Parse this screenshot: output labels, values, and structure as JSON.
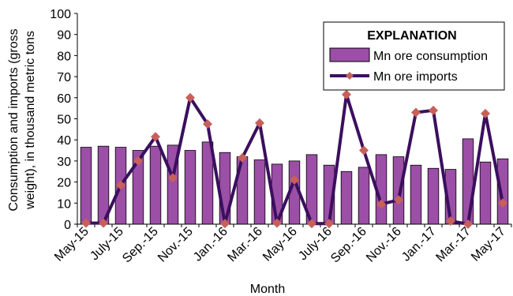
{
  "chart_data": {
    "type": "bar",
    "title": "",
    "xlabel": "Month",
    "ylabel_lines": [
      "Consumption and imports (gross",
      "weight), in thousand metric tons"
    ],
    "ylim": [
      0,
      100
    ],
    "yticks": [
      0,
      10,
      20,
      30,
      40,
      50,
      60,
      70,
      80,
      90,
      100
    ],
    "grid": false,
    "categories": [
      "May-15",
      "Jun-15",
      "July-15",
      "Aug-15",
      "Sep.-15",
      "Oct.-15",
      "Nov.-15",
      "Dec.-15",
      "Jan.-16",
      "Feb.-16",
      "Mar.-16",
      "Apr.-16",
      "May-16",
      "Jun-16",
      "July-16",
      "Aug-16",
      "Sep.-16",
      "Oct.-16",
      "Nov.-16",
      "Dec.-16",
      "Jan.-17",
      "Feb.-17",
      "Mar.-17",
      "Apr.-17",
      "May-17"
    ],
    "shown_tick_labels": [
      "May-15",
      "July-15",
      "Sep.-15",
      "Nov.-15",
      "Jan.-16",
      "Mar.-16",
      "May-16",
      "July-16",
      "Sep.-16",
      "Nov.-16",
      "Jan.-17",
      "Mar.-17",
      "May-17"
    ],
    "legend": {
      "title": "EXPLANATION",
      "placement": "top-right"
    },
    "series": [
      {
        "name": "Mn ore consumption",
        "type": "bar",
        "color": "#9b4fa6",
        "values": [
          36.5,
          37,
          36.5,
          35,
          37,
          37.5,
          35,
          39,
          34,
          32,
          30.5,
          28.5,
          30,
          33,
          28,
          25,
          27,
          33,
          32,
          28,
          26.5,
          26,
          40.5,
          29.5,
          31
        ]
      },
      {
        "name": "Mn ore imports",
        "type": "line",
        "color": "#3b0f5e",
        "marker_color": "#c8605a",
        "values": [
          0.5,
          0.5,
          18.5,
          30,
          41.5,
          22,
          60,
          47.5,
          0.3,
          31.5,
          48,
          0.5,
          21,
          0.3,
          0.3,
          61.5,
          35,
          9.5,
          11.5,
          53,
          54,
          1.5,
          0,
          52.5,
          10
        ]
      }
    ]
  }
}
